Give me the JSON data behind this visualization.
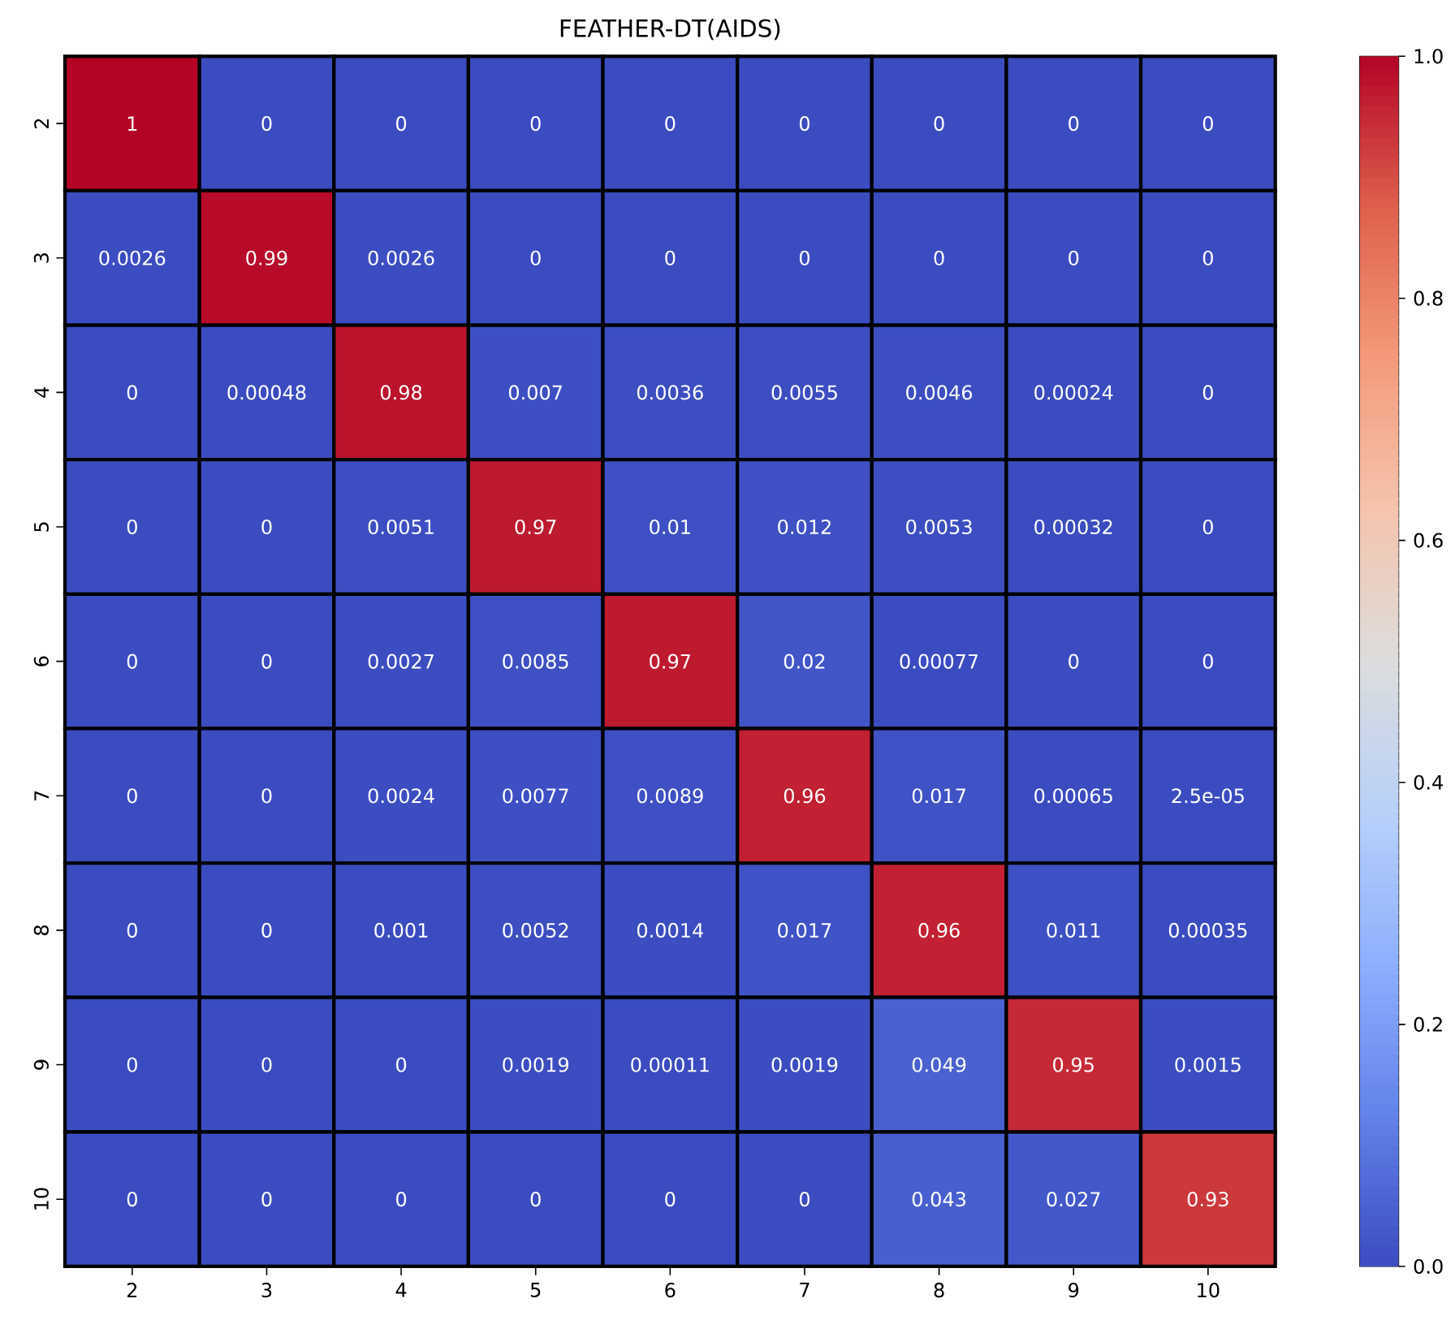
{
  "chart_data": {
    "type": "heatmap",
    "title": "FEATHER-DT(AIDS)",
    "categories": [
      "2",
      "3",
      "4",
      "5",
      "6",
      "7",
      "8",
      "9",
      "10"
    ],
    "y_categories": [
      "2",
      "3",
      "4",
      "5",
      "6",
      "7",
      "8",
      "9",
      "10"
    ],
    "cells": [
      [
        1,
        0,
        0,
        0,
        0,
        0,
        0,
        0,
        0
      ],
      [
        0.0026,
        0.99,
        0.0026,
        0,
        0,
        0,
        0,
        0,
        0
      ],
      [
        0,
        0.00048,
        0.98,
        0.007,
        0.0036,
        0.0055,
        0.0046,
        0.00024,
        0
      ],
      [
        0,
        0,
        0.0051,
        0.97,
        0.01,
        0.012,
        0.0053,
        0.00032,
        0
      ],
      [
        0,
        0,
        0.0027,
        0.0085,
        0.97,
        0.02,
        0.00077,
        0,
        0
      ],
      [
        0,
        0,
        0.0024,
        0.0077,
        0.0089,
        0.96,
        0.017,
        0.00065,
        2.5e-05
      ],
      [
        0,
        0,
        0.001,
        0.0052,
        0.0014,
        0.017,
        0.96,
        0.011,
        0.00035
      ],
      [
        0,
        0,
        0,
        0.0019,
        0.00011,
        0.0019,
        0.049,
        0.95,
        0.0015
      ],
      [
        0,
        0,
        0,
        0,
        0,
        0,
        0.043,
        0.027,
        0.93
      ]
    ],
    "cell_labels": [
      [
        "1",
        "0",
        "0",
        "0",
        "0",
        "0",
        "0",
        "0",
        "0"
      ],
      [
        "0.0026",
        "0.99",
        "0.0026",
        "0",
        "0",
        "0",
        "0",
        "0",
        "0"
      ],
      [
        "0",
        "0.00048",
        "0.98",
        "0.007",
        "0.0036",
        "0.0055",
        "0.0046",
        "0.00024",
        "0"
      ],
      [
        "0",
        "0",
        "0.0051",
        "0.97",
        "0.01",
        "0.012",
        "0.0053",
        "0.00032",
        "0"
      ],
      [
        "0",
        "0",
        "0.0027",
        "0.0085",
        "0.97",
        "0.02",
        "0.00077",
        "0",
        "0"
      ],
      [
        "0",
        "0",
        "0.0024",
        "0.0077",
        "0.0089",
        "0.96",
        "0.017",
        "0.00065",
        "2.5e-05"
      ],
      [
        "0",
        "0",
        "0.001",
        "0.0052",
        "0.0014",
        "0.017",
        "0.96",
        "0.011",
        "0.00035"
      ],
      [
        "0",
        "0",
        "0",
        "0.0019",
        "0.00011",
        "0.0019",
        "0.049",
        "0.95",
        "0.0015"
      ],
      [
        "0",
        "0",
        "0",
        "0",
        "0",
        "0",
        "0.043",
        "0.027",
        "0.93"
      ]
    ],
    "clim": [
      0,
      1
    ],
    "cticks": [
      {
        "value": 0,
        "label": "0.0"
      },
      {
        "value": 0.2,
        "label": "0.2"
      },
      {
        "value": 0.4,
        "label": "0.4"
      },
      {
        "value": 0.6,
        "label": "0.6"
      },
      {
        "value": 0.8,
        "label": "0.8"
      },
      {
        "value": 1,
        "label": "1.0"
      }
    ]
  }
}
